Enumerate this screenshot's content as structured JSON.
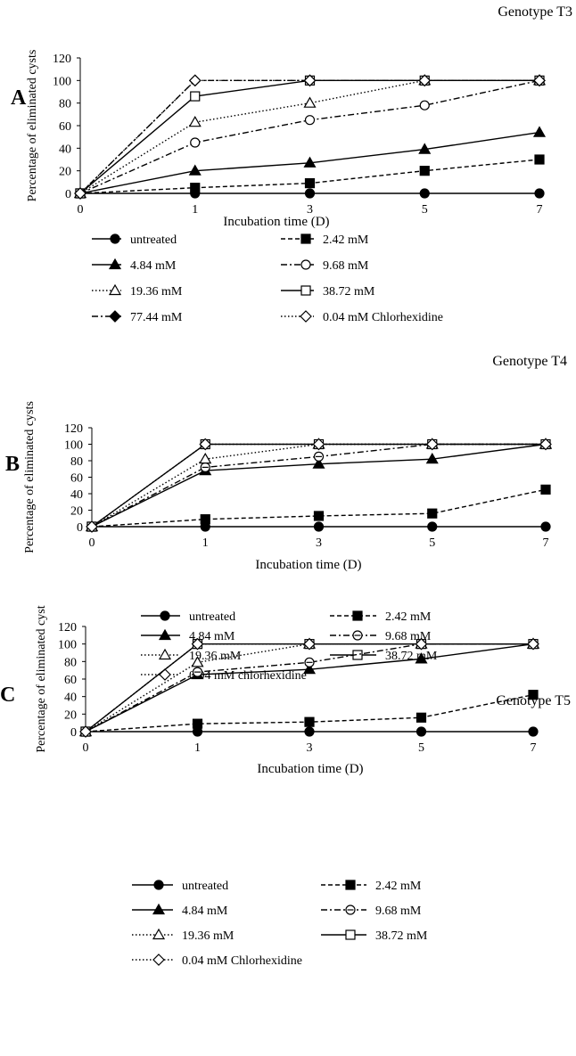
{
  "chart_data": [
    {
      "type": "line",
      "panel_letter": "A",
      "title": "Genotype T3",
      "xlabel": "Incubation time (D)",
      "ylabel": "Percentage of eliminated cysts",
      "x": [
        0,
        1,
        3,
        5,
        7
      ],
      "x_ticks": [
        "0",
        "1",
        "3",
        "5",
        "7"
      ],
      "y_ticks": [
        "0",
        "20",
        "40",
        "60",
        "80",
        "100",
        "120"
      ],
      "ylim": [
        0,
        120
      ],
      "grid": false,
      "legend_position": "bottom",
      "series": [
        {
          "name": "untreated",
          "values": [
            0,
            0,
            0,
            0,
            0
          ],
          "marker": "circle-filled",
          "line": "solid"
        },
        {
          "name": "2.42 mM",
          "values": [
            0,
            5,
            9,
            20,
            30
          ],
          "marker": "square-filled",
          "line": "dashed"
        },
        {
          "name": "4.84 mM",
          "values": [
            0,
            20,
            27,
            39,
            54
          ],
          "marker": "triangle-filled",
          "line": "solid"
        },
        {
          "name": "9.68 mM",
          "values": [
            0,
            45,
            65,
            78,
            100
          ],
          "marker": "circle-open",
          "line": "dashdot"
        },
        {
          "name": "19.36 mM",
          "values": [
            0,
            63,
            80,
            100,
            100
          ],
          "marker": "triangle-open",
          "line": "dotted"
        },
        {
          "name": "38.72 mM",
          "values": [
            0,
            86,
            100,
            100,
            100
          ],
          "marker": "square-open",
          "line": "solid"
        },
        {
          "name": "77.44 mM",
          "values": [
            0,
            100,
            100,
            100,
            100
          ],
          "marker": "diamond-filled",
          "line": "dashdot"
        },
        {
          "name": "0.04 mM Chlorhexidine",
          "values": [
            0,
            100,
            100,
            100,
            100
          ],
          "marker": "diamond-open",
          "line": "dotted"
        }
      ]
    },
    {
      "type": "line",
      "panel_letter": "B",
      "title": "Genotype T4",
      "xlabel": "Incubation time (D)",
      "ylabel": "Percentage of eliminated cysts",
      "x": [
        0,
        1,
        3,
        5,
        7
      ],
      "x_ticks": [
        "0",
        "1",
        "3",
        "5",
        "7"
      ],
      "y_ticks": [
        "0",
        "20",
        "40",
        "60",
        "80",
        "100",
        "120"
      ],
      "ylim": [
        0,
        120
      ],
      "grid": false,
      "legend_position": "bottom",
      "series": [
        {
          "name": "untreated",
          "values": [
            0,
            0,
            0,
            0,
            0
          ],
          "marker": "circle-filled",
          "line": "solid"
        },
        {
          "name": "2.42 mM",
          "values": [
            0,
            9,
            13,
            16,
            45
          ],
          "marker": "square-filled",
          "line": "dashed"
        },
        {
          "name": "4.84 mM",
          "values": [
            0,
            68,
            76,
            82,
            100
          ],
          "marker": "triangle-filled",
          "line": "solid"
        },
        {
          "name": "9.68 mM",
          "values": [
            0,
            72,
            85,
            100,
            100
          ],
          "marker": "circle-open-dash",
          "line": "dashdot"
        },
        {
          "name": "19.36 mM",
          "values": [
            0,
            82,
            100,
            100,
            100
          ],
          "marker": "triangle-open",
          "line": "dotted"
        },
        {
          "name": "38.72 mM",
          "values": [
            0,
            100,
            100,
            100,
            100
          ],
          "marker": "square-open",
          "line": "solid"
        },
        {
          "name": "0.04 mM chlorhexidine",
          "values": [
            0,
            100,
            100,
            100,
            100
          ],
          "marker": "diamond-open",
          "line": "dotted"
        }
      ]
    },
    {
      "type": "line",
      "panel_letter": "C",
      "title": "Genotype T5",
      "xlabel": "Incubation time (D)",
      "ylabel": "Percentage of eliminated cyst",
      "x": [
        0,
        1,
        3,
        5,
        7
      ],
      "x_ticks": [
        "0",
        "1",
        "3",
        "5",
        "7"
      ],
      "y_ticks": [
        "0",
        "20",
        "40",
        "60",
        "80",
        "100",
        "120"
      ],
      "ylim": [
        0,
        120
      ],
      "grid": false,
      "legend_position": "bottom",
      "series": [
        {
          "name": "untreated",
          "values": [
            0,
            0,
            0,
            0,
            0
          ],
          "marker": "circle-filled",
          "line": "solid"
        },
        {
          "name": "2.42 mM",
          "values": [
            0,
            9,
            11,
            16,
            42
          ],
          "marker": "square-filled",
          "line": "dashed"
        },
        {
          "name": "4.84 mM",
          "values": [
            0,
            65,
            71,
            83,
            100
          ],
          "marker": "triangle-filled",
          "line": "solid"
        },
        {
          "name": "9.68 mM",
          "values": [
            0,
            68,
            79,
            100,
            100
          ],
          "marker": "circle-open-dash",
          "line": "dashdot"
        },
        {
          "name": "19.36 mM",
          "values": [
            0,
            79,
            100,
            100,
            100
          ],
          "marker": "triangle-open",
          "line": "dotted"
        },
        {
          "name": "38.72 mM",
          "values": [
            0,
            100,
            100,
            100,
            100
          ],
          "marker": "square-open",
          "line": "solid"
        },
        {
          "name": "0.04 mM Chlorhexidine",
          "values": [
            0,
            100,
            100,
            100,
            100
          ],
          "marker": "diamond-open",
          "line": "dotted"
        }
      ]
    }
  ]
}
